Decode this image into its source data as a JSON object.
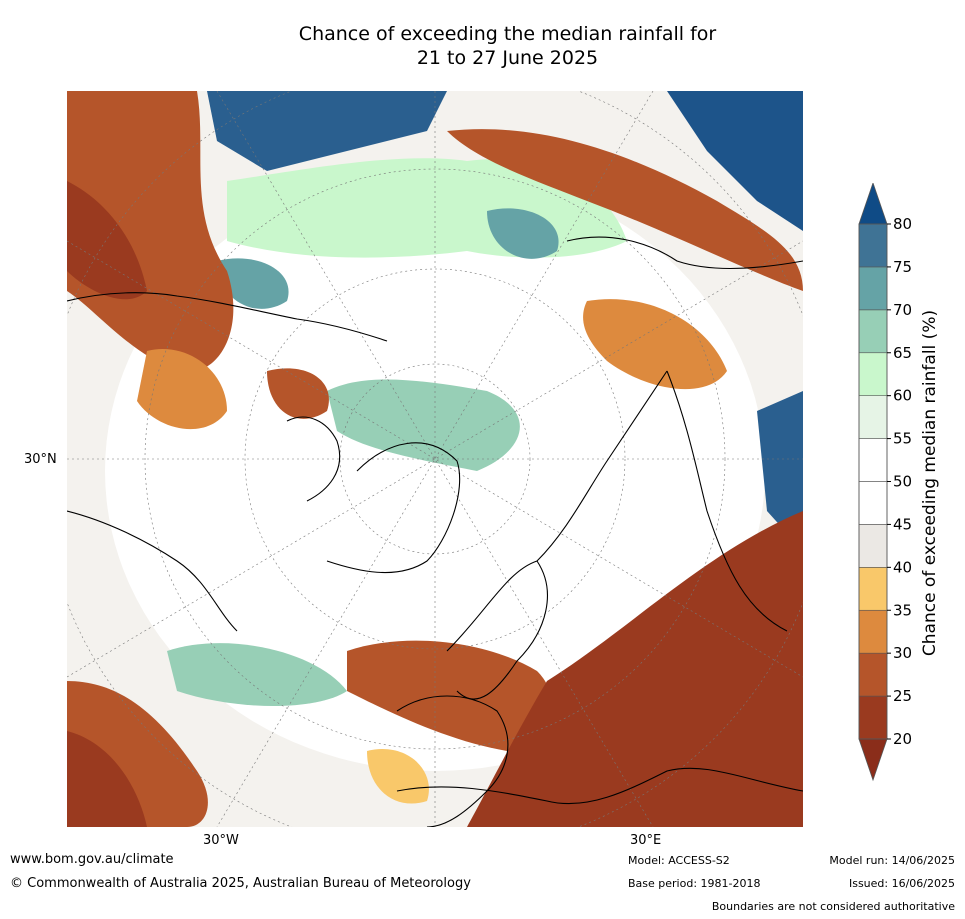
{
  "title": {
    "line1": "Chance of exceeding the median rainfall for",
    "line2": "21 to 27 June 2025"
  },
  "map": {
    "lat_labels": [
      "30°N"
    ],
    "lon_labels": [
      "30°W",
      "30°E"
    ]
  },
  "colorbar": {
    "title": "Chance of exceeding median rainfall (%)",
    "ticks": [
      "20",
      "25",
      "30",
      "35",
      "40",
      "45",
      "50",
      "55",
      "60",
      "65",
      "70",
      "75",
      "80"
    ],
    "bins": [
      {
        "from": 20,
        "to": 25,
        "color": "#9a3a1f"
      },
      {
        "from": 25,
        "to": 30,
        "color": "#b5552a"
      },
      {
        "from": 30,
        "to": 35,
        "color": "#dd8a3e"
      },
      {
        "from": 35,
        "to": 40,
        "color": "#f9c86a"
      },
      {
        "from": 40,
        "to": 45,
        "color": "#ebe8e4"
      },
      {
        "from": 45,
        "to": 50,
        "color": "#ffffff"
      },
      {
        "from": 50,
        "to": 55,
        "color": "#ffffff"
      },
      {
        "from": 55,
        "to": 60,
        "color": "#e6f4e6"
      },
      {
        "from": 60,
        "to": 65,
        "color": "#c9f7cc"
      },
      {
        "from": 65,
        "to": 70,
        "color": "#97cfb6"
      },
      {
        "from": 70,
        "to": 75,
        "color": "#65a3a6"
      },
      {
        "from": 75,
        "to": 80,
        "color": "#3f7395"
      }
    ],
    "under_color": "#8a2d1a",
    "over_color": "#0f4b86"
  },
  "footer": {
    "website": "www.bom.gov.au/climate",
    "copyright": "© Commonwealth of Australia 2025, Australian Bureau of Meteorology",
    "model": "Model: ACCESS-S2",
    "base_period": "Base period: 1981-2018",
    "model_run": "Model run: 14/06/2025",
    "issued": "Issued: 16/06/2025",
    "disclaimer": "Boundaries are not considered authoritative"
  }
}
